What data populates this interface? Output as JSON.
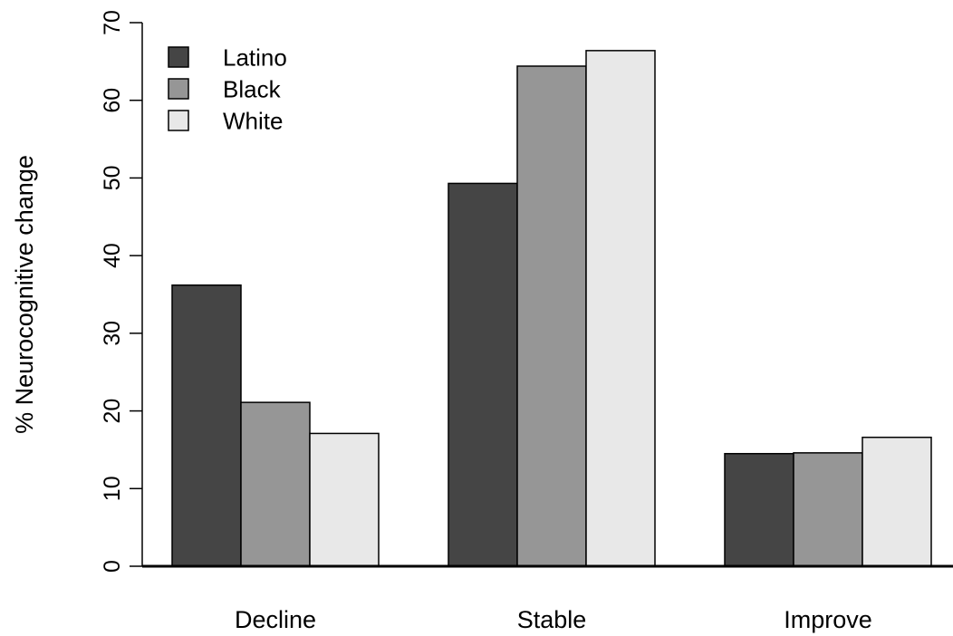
{
  "chart_data": {
    "type": "bar",
    "title": "",
    "xlabel": "",
    "ylabel": "% Neurocognitive change",
    "categories": [
      "Decline",
      "Stable",
      "Improve"
    ],
    "series": [
      {
        "name": "Latino",
        "values": [
          36.2,
          49.3,
          14.5
        ],
        "color": "#454545"
      },
      {
        "name": "Black",
        "values": [
          21.1,
          64.4,
          14.6
        ],
        "color": "#969696"
      },
      {
        "name": "White",
        "values": [
          17.1,
          66.4,
          16.6
        ],
        "color": "#e8e8e8"
      }
    ],
    "ylim": [
      0,
      70
    ],
    "yticks": [
      "0",
      "10",
      "20",
      "30",
      "40",
      "50",
      "60",
      "70"
    ],
    "legend_position": "top-left",
    "grid": false,
    "bar_edge_color": "#000000"
  }
}
